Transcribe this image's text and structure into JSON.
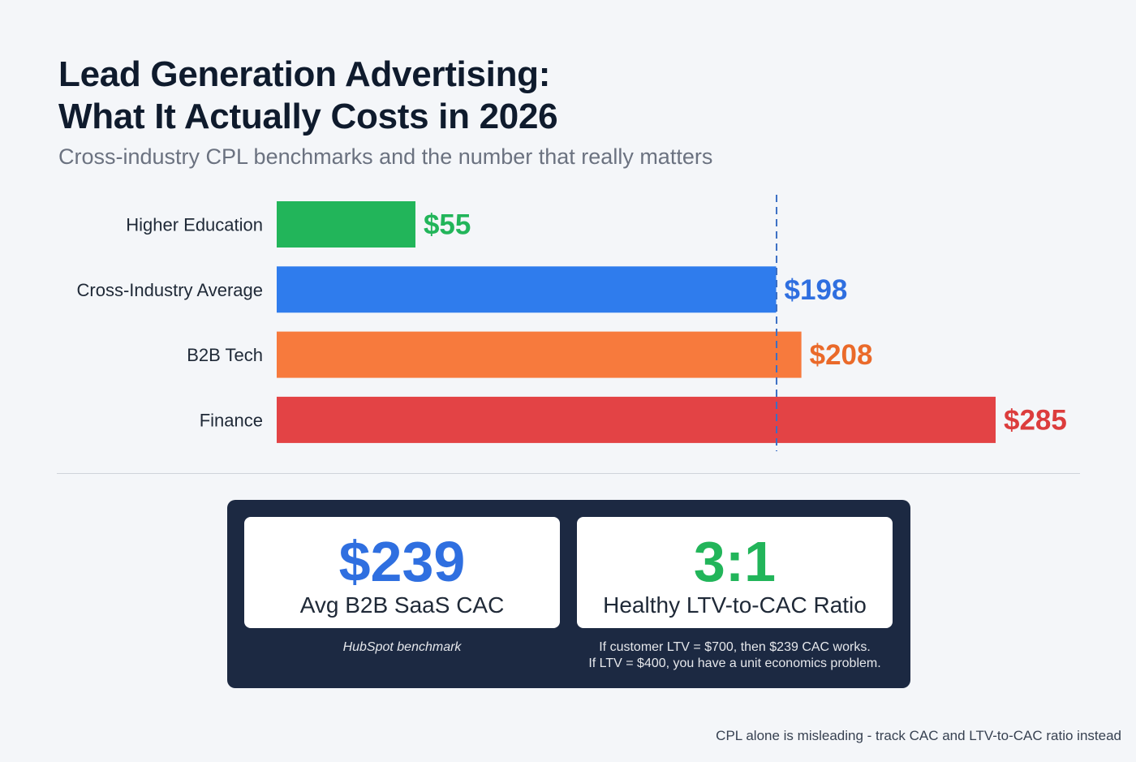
{
  "title": {
    "line1": "Lead Generation Advertising:",
    "line2": "What It Actually Costs in 2026"
  },
  "subtitle": "Cross-industry CPL benchmarks and the number that really matters",
  "chart_data": {
    "type": "bar",
    "orientation": "horizontal",
    "categories": [
      "Higher Education",
      "Cross-Industry Average",
      "B2B Tech",
      "Finance"
    ],
    "values": [
      55,
      198,
      208,
      285
    ],
    "value_labels": [
      "$55",
      "$198",
      "$208",
      "$285"
    ],
    "colors": [
      "#22b55a",
      "#2f7ced",
      "#f77a3d",
      "#e34345"
    ],
    "label_colors": [
      "#22b55a",
      "#2f6fe0",
      "#ea6a2a",
      "#dc3d3d"
    ],
    "reference_line": {
      "value": 198,
      "style": "dashed",
      "color": "#3b6fc4"
    },
    "xlim": [
      0,
      300
    ],
    "title": "",
    "xlabel": "",
    "ylabel": ""
  },
  "highlights": {
    "cac": {
      "value": "$239",
      "label": "Avg B2B SaaS CAC",
      "note": "HubSpot benchmark",
      "color": "#2f6fe0"
    },
    "ratio": {
      "value": "3:1",
      "label": "Healthy LTV-to-CAC Ratio",
      "note_line1": "If customer LTV = $700, then $239 CAC works.",
      "note_line2": "If LTV = $400, you have a unit economics problem.",
      "color": "#22b55a"
    }
  },
  "footer": "CPL alone is misleading - track CAC and LTV-to-CAC ratio instead"
}
